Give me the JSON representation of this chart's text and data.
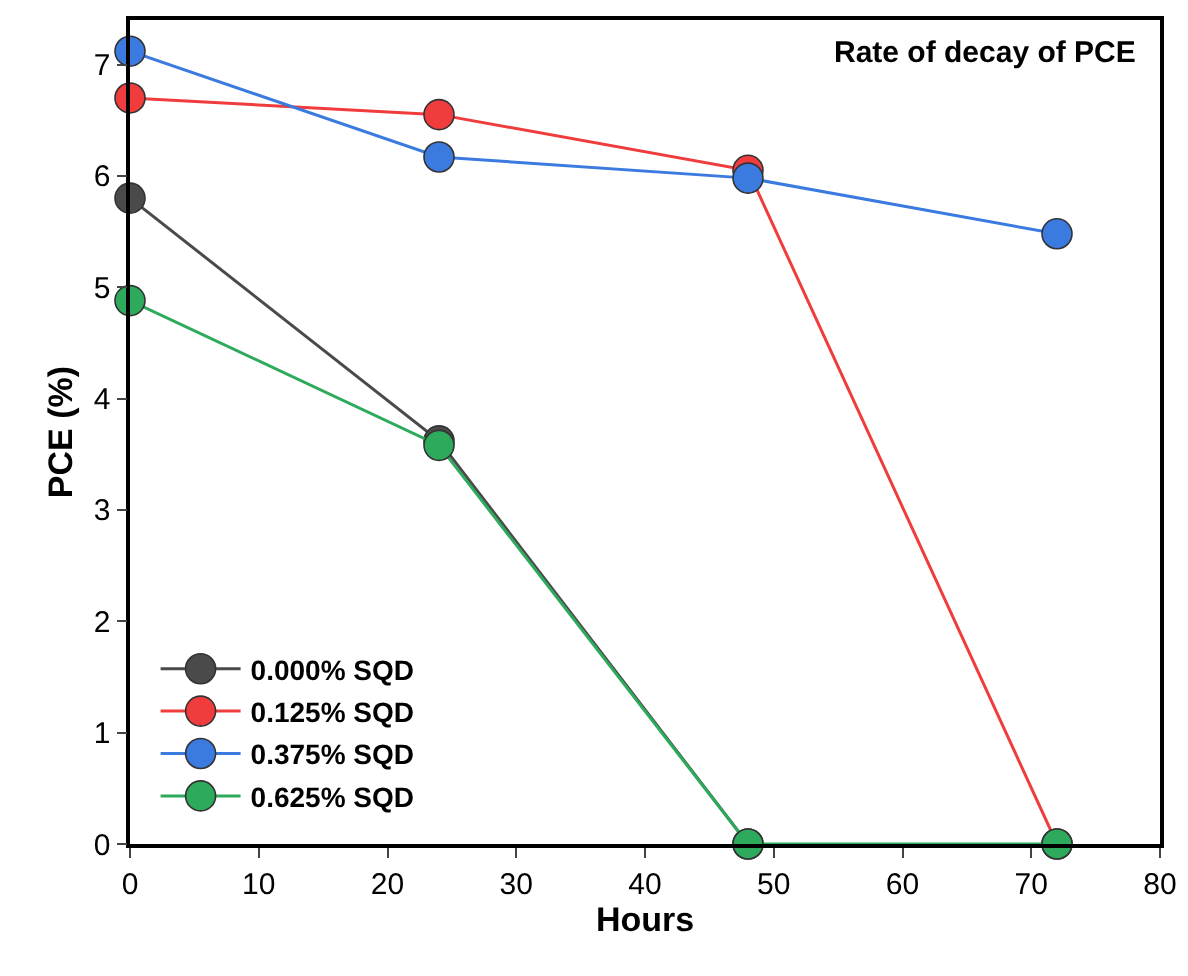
{
  "chart_data": {
    "type": "line",
    "title": "Rate of decay of PCE",
    "xlabel": "Hours",
    "ylabel": "PCE (%)",
    "x": [
      0,
      24,
      48,
      72
    ],
    "series": [
      {
        "name": "0.000% SQD",
        "color": "#4a4a4a",
        "x": [
          0,
          24,
          48
        ],
        "values": [
          5.8,
          3.62,
          0
        ]
      },
      {
        "name": "0.125% SQD",
        "color": "#f03c3c",
        "values": [
          6.7,
          6.55,
          6.05,
          0
        ]
      },
      {
        "name": "0.375% SQD",
        "color": "#3b7be0",
        "values": [
          7.12,
          6.17,
          5.98,
          5.48
        ]
      },
      {
        "name": "0.625% SQD",
        "color": "#2eaa5c",
        "values": [
          4.88,
          3.58,
          0,
          0
        ]
      }
    ],
    "xlim": [
      0,
      80
    ],
    "xticks": [
      0,
      10,
      20,
      30,
      40,
      50,
      60,
      70,
      80
    ],
    "ylim": [
      0,
      7.4
    ],
    "yticks": [
      0,
      1,
      2,
      3,
      4,
      5,
      6,
      7
    ],
    "grid": false,
    "legend": "bottom left",
    "marker": "circle",
    "line_style": "solid"
  }
}
